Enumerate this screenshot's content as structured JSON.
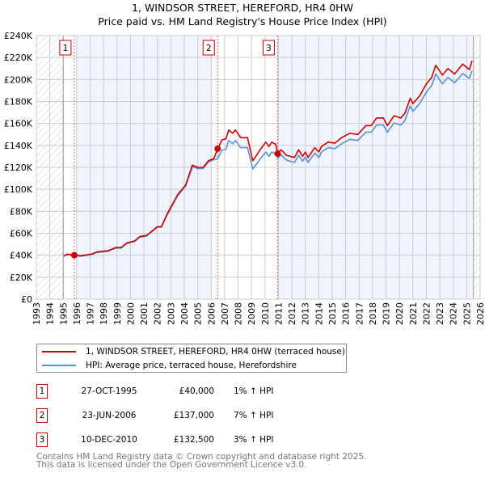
{
  "chart_data": {
    "type": "line",
    "title": "1, WINDSOR STREET, HEREFORD, HR4 0HW",
    "subtitle": "Price paid vs. HM Land Registry's House Price Index (HPI)",
    "xlim": [
      1993,
      2026
    ],
    "ylim": [
      0,
      240000
    ],
    "grid": true,
    "x_ticks": [
      "1993",
      "1994",
      "1995",
      "1996",
      "1997",
      "1998",
      "1999",
      "2000",
      "2001",
      "2002",
      "2003",
      "2004",
      "2005",
      "2006",
      "2007",
      "2008",
      "2009",
      "2010",
      "2011",
      "2012",
      "2013",
      "2014",
      "2015",
      "2016",
      "2017",
      "2018",
      "2019",
      "2020",
      "2021",
      "2022",
      "2023",
      "2024",
      "2025",
      "2026"
    ],
    "y_ticks": [
      "£0",
      "£20K",
      "£40K",
      "£60K",
      "£80K",
      "£100K",
      "£120K",
      "£140K",
      "£160K",
      "£180K",
      "£200K",
      "£220K",
      "£240K"
    ],
    "data_range": [
      1995.0,
      2025.5
    ],
    "series": [
      {
        "name": "1, WINDSOR STREET, HEREFORD, HR4 0HW (terraced house)",
        "color": "#cc0000",
        "x": [
          1995.05,
          1995.3,
          1995.8,
          1996.3,
          1997.1,
          1997.5,
          1998.3,
          1998.9,
          1999.3,
          1999.7,
          2000.3,
          2000.7,
          2001.2,
          2001.6,
          2002.0,
          2002.3,
          2002.7,
          2003.1,
          2003.5,
          2004.1,
          2004.6,
          2005.0,
          2005.4,
          2005.8,
          2006.2,
          2006.48,
          2006.8,
          2007.1,
          2007.3,
          2007.6,
          2007.8,
          2008.2,
          2008.7,
          2009.1,
          2009.7,
          2010.06,
          2010.3,
          2010.5,
          2010.8,
          2010.94,
          2011.2,
          2011.6,
          2012.2,
          2012.5,
          2012.8,
          2013.0,
          2013.2,
          2013.7,
          2014.0,
          2014.2,
          2014.7,
          2015.2,
          2015.7,
          2016.3,
          2016.9,
          2017.5,
          2017.9,
          2018.3,
          2018.8,
          2019.1,
          2019.6,
          2020.1,
          2020.4,
          2020.8,
          2021.0,
          2021.5,
          2022.0,
          2022.4,
          2022.7,
          2023.2,
          2023.6,
          2024.1,
          2024.7,
          2025.2,
          2025.4
        ],
        "values": [
          39500,
          41000,
          40000,
          39500,
          41000,
          43000,
          44000,
          47000,
          47000,
          51000,
          53000,
          57000,
          58000,
          62000,
          66000,
          66000,
          77000,
          86000,
          95000,
          104000,
          122000,
          120000,
          120000,
          126000,
          128000,
          137000,
          145000,
          146000,
          154000,
          151000,
          154000,
          147000,
          147000,
          126000,
          137000,
          143000,
          139000,
          143000,
          141000,
          132500,
          136000,
          131000,
          129000,
          136000,
          130000,
          134000,
          129000,
          138000,
          134000,
          139000,
          143000,
          142000,
          147000,
          151000,
          150000,
          158000,
          158000,
          165000,
          165000,
          158000,
          167000,
          165000,
          169000,
          183000,
          178000,
          185000,
          196000,
          202000,
          213000,
          204000,
          210000,
          205000,
          214000,
          209000,
          217000
        ]
      },
      {
        "name": "HPI: Average price, terraced house, Herefordshire",
        "color": "#5b8fd4",
        "x": [
          1995.05,
          1995.3,
          1995.8,
          1996.3,
          1997.1,
          1997.5,
          1998.3,
          1998.9,
          1999.3,
          1999.7,
          2000.3,
          2000.7,
          2001.2,
          2001.6,
          2002.0,
          2002.3,
          2002.7,
          2003.1,
          2003.5,
          2004.1,
          2004.6,
          2005.0,
          2005.4,
          2005.8,
          2006.2,
          2006.48,
          2006.8,
          2007.1,
          2007.3,
          2007.6,
          2007.8,
          2008.2,
          2008.7,
          2009.1,
          2009.7,
          2010.06,
          2010.3,
          2010.5,
          2010.8,
          2010.94,
          2011.2,
          2011.6,
          2012.2,
          2012.5,
          2012.8,
          2013.0,
          2013.2,
          2013.7,
          2014.0,
          2014.2,
          2014.7,
          2015.2,
          2015.7,
          2016.3,
          2016.9,
          2017.5,
          2017.9,
          2018.3,
          2018.8,
          2019.1,
          2019.6,
          2020.1,
          2020.4,
          2020.8,
          2021.0,
          2021.5,
          2022.0,
          2022.4,
          2022.7,
          2023.2,
          2023.6,
          2024.1,
          2024.7,
          2025.2,
          2025.4
        ],
        "values": [
          39000,
          40500,
          39600,
          39000,
          40500,
          42500,
          43500,
          46500,
          46500,
          50500,
          52500,
          56500,
          57500,
          61500,
          65500,
          65500,
          76000,
          85000,
          94000,
          103000,
          120500,
          119000,
          119000,
          125000,
          127000,
          128000,
          135500,
          136500,
          144500,
          141500,
          144500,
          138000,
          138000,
          118500,
          128500,
          134000,
          130000,
          134000,
          132000,
          128600,
          131500,
          126500,
          124500,
          131000,
          125500,
          129500,
          124500,
          133000,
          129000,
          134000,
          138000,
          137000,
          141500,
          145500,
          144500,
          152000,
          152000,
          158500,
          158500,
          152000,
          160500,
          158500,
          162500,
          176000,
          171000,
          178000,
          188500,
          194500,
          205000,
          196000,
          202000,
          197000,
          205500,
          201000,
          208000
        ]
      }
    ],
    "sales": [
      {
        "label": "1",
        "x": 1995.82,
        "value": 40000
      },
      {
        "label": "2",
        "x": 2006.48,
        "value": 137000
      },
      {
        "label": "3",
        "x": 2010.94,
        "value": 132500
      }
    ]
  },
  "legend": {
    "property": "1, WINDSOR STREET, HEREFORD, HR4 0HW (terraced house)",
    "hpi": "HPI: Average price, terraced house, Herefordshire"
  },
  "transactions": [
    {
      "num": "1",
      "date": "27-OCT-1995",
      "price": "£40,000",
      "hpi": "1% ↑ HPI"
    },
    {
      "num": "2",
      "date": "23-JUN-2006",
      "price": "£137,000",
      "hpi": "7% ↑ HPI"
    },
    {
      "num": "3",
      "date": "10-DEC-2010",
      "price": "£132,500",
      "hpi": "3% ↑ HPI"
    }
  ],
  "footer": {
    "line1": "Contains HM Land Registry data © Crown copyright and database right 2025.",
    "line2": "This data is licensed under the Open Government Licence v3.0."
  }
}
